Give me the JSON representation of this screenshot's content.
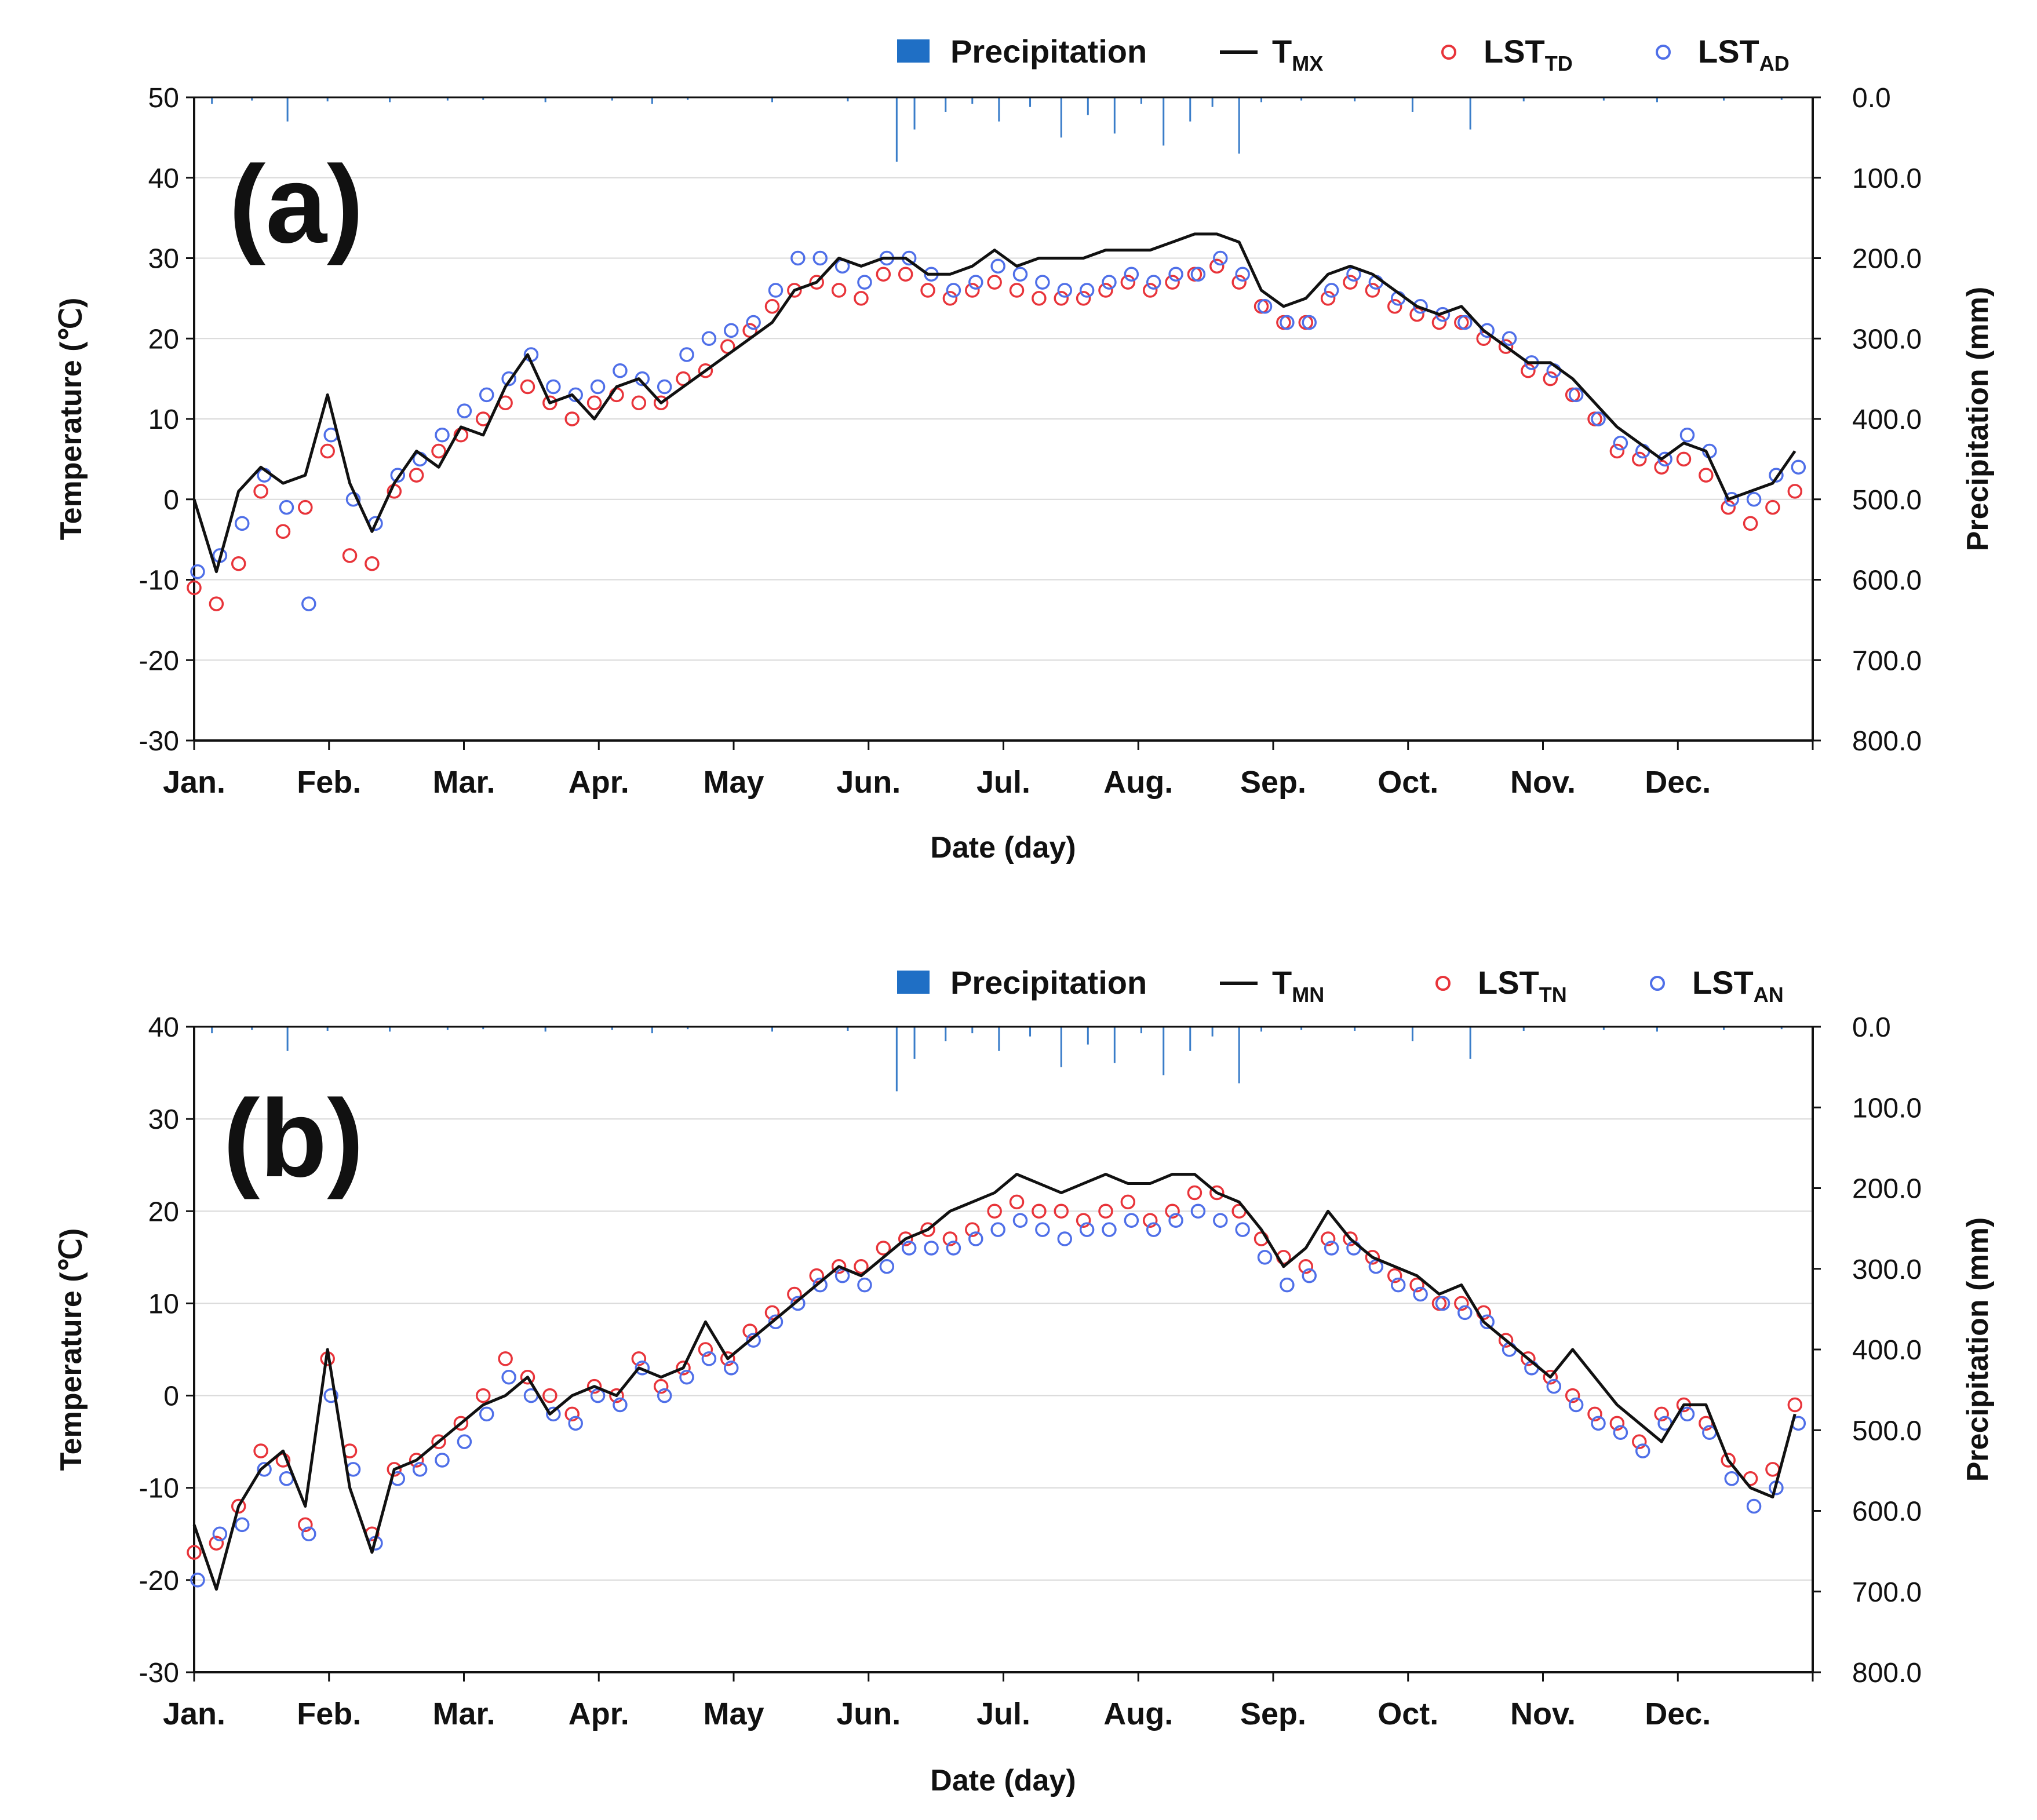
{
  "chart_data": [
    {
      "type": "line",
      "panel_label": "(a)",
      "xlabel": "Date (day)",
      "ylabel": "Temperature (℃)",
      "y2label": "Precipitation (mm)",
      "ylim": [
        -30,
        50
      ],
      "y2lim": [
        0,
        800
      ],
      "yticks": [
        "50",
        "40",
        "30",
        "20",
        "10",
        "0",
        "-10",
        "-20",
        "-30"
      ],
      "y2ticks": [
        "0.0",
        "100.0",
        "200.0",
        "300.0",
        "400.0",
        "500.0",
        "600.0",
        "700.0",
        "800.0"
      ],
      "months": [
        "Jan.",
        "Feb.",
        "Mar.",
        "Apr.",
        "May",
        "Jun.",
        "Jul.",
        "Aug.",
        "Sep.",
        "Oct.",
        "Nov.",
        "Dec."
      ],
      "legend": {
        "precip": "Precipitation",
        "line_main": "T",
        "line_sub": "MX",
        "red_main": "LST",
        "red_sub": "TD",
        "blue_main": "LST",
        "blue_sub": "AD"
      },
      "colors": {
        "line": "#111111",
        "red": "#e8343a",
        "blue": "#4f6fe8",
        "precip": "#3a7dc9"
      },
      "series_note": "Daily values sampled on a 5-day step (day-of-year)",
      "days": [
        1,
        6,
        11,
        16,
        21,
        26,
        31,
        36,
        41,
        46,
        51,
        56,
        61,
        66,
        71,
        76,
        81,
        86,
        91,
        96,
        101,
        106,
        111,
        116,
        121,
        126,
        131,
        136,
        141,
        146,
        151,
        156,
        161,
        166,
        171,
        176,
        181,
        186,
        191,
        196,
        201,
        206,
        211,
        216,
        221,
        226,
        231,
        236,
        241,
        246,
        251,
        256,
        261,
        266,
        271,
        276,
        281,
        286,
        291,
        296,
        301,
        306,
        311,
        316,
        321,
        326,
        331,
        336,
        341,
        346,
        351,
        356,
        361
      ],
      "T_MX": [
        0,
        -9,
        1,
        4,
        2,
        3,
        13,
        2,
        -4,
        2,
        6,
        4,
        9,
        8,
        14,
        18,
        12,
        13,
        10,
        14,
        15,
        12,
        14,
        16,
        18,
        20,
        22,
        26,
        27,
        30,
        29,
        30,
        30,
        28,
        28,
        29,
        31,
        29,
        30,
        30,
        30,
        31,
        31,
        31,
        32,
        33,
        33,
        32,
        26,
        24,
        25,
        28,
        29,
        28,
        26,
        24,
        23,
        24,
        21,
        19,
        17,
        17,
        15,
        12,
        9,
        7,
        5,
        7,
        6,
        0,
        1,
        2,
        6
      ],
      "LST_TD": [
        -11,
        -13,
        -8,
        1,
        -4,
        -1,
        6,
        -7,
        -8,
        1,
        3,
        6,
        8,
        10,
        12,
        14,
        12,
        10,
        12,
        13,
        12,
        12,
        15,
        16,
        19,
        21,
        24,
        26,
        27,
        26,
        25,
        28,
        28,
        26,
        25,
        26,
        27,
        26,
        25,
        25,
        25,
        26,
        27,
        26,
        27,
        28,
        29,
        27,
        24,
        22,
        22,
        25,
        27,
        26,
        24,
        23,
        22,
        22,
        20,
        19,
        16,
        15,
        13,
        10,
        6,
        5,
        4,
        5,
        3,
        -1,
        -3,
        -1,
        1
      ],
      "LST_AD": [
        -9,
        -7,
        -3,
        3,
        -1,
        -13,
        8,
        0,
        -3,
        3,
        5,
        8,
        11,
        13,
        15,
        18,
        14,
        13,
        14,
        16,
        15,
        14,
        18,
        20,
        21,
        22,
        26,
        30,
        30,
        29,
        27,
        30,
        30,
        28,
        26,
        27,
        29,
        28,
        27,
        26,
        26,
        27,
        28,
        27,
        28,
        28,
        30,
        28,
        24,
        22,
        22,
        26,
        28,
        27,
        25,
        24,
        23,
        22,
        21,
        20,
        17,
        16,
        13,
        10,
        7,
        6,
        5,
        8,
        6,
        0,
        0,
        3,
        4
      ],
      "precip_days": [
        5,
        14,
        22,
        31,
        45,
        58,
        66,
        80,
        95,
        104,
        112,
        131,
        148,
        159,
        163,
        170,
        176,
        182,
        189,
        196,
        202,
        208,
        214,
        219,
        225,
        230,
        236,
        241,
        250,
        262,
        275,
        288,
        300,
        318,
        330,
        345,
        358
      ],
      "precip_mm": [
        8,
        4,
        30,
        5,
        6,
        4,
        3,
        6,
        4,
        8,
        3,
        6,
        5,
        80,
        40,
        18,
        8,
        30,
        12,
        50,
        22,
        45,
        8,
        60,
        30,
        12,
        70,
        6,
        4,
        5,
        18,
        40,
        5,
        4,
        6,
        4,
        3
      ]
    },
    {
      "type": "line",
      "panel_label": "(b)",
      "xlabel": "Date (day)",
      "ylabel": "Temperature (℃)",
      "y2label": "Precipitation (mm)",
      "ylim": [
        -30,
        40
      ],
      "y2lim": [
        0,
        800
      ],
      "yticks": [
        "40",
        "30",
        "20",
        "10",
        "0",
        "-10",
        "-20",
        "-30"
      ],
      "y2ticks": [
        "0.0",
        "100.0",
        "200.0",
        "300.0",
        "400.0",
        "500.0",
        "600.0",
        "700.0",
        "800.0"
      ],
      "months": [
        "Jan.",
        "Feb.",
        "Mar.",
        "Apr.",
        "May",
        "Jun.",
        "Jul.",
        "Aug.",
        "Sep.",
        "Oct.",
        "Nov.",
        "Dec."
      ],
      "legend": {
        "precip": "Precipitation",
        "line_main": "T",
        "line_sub": "MN",
        "red_main": "LST",
        "red_sub": "TN",
        "blue_main": "LST",
        "blue_sub": "AN"
      },
      "colors": {
        "line": "#111111",
        "red": "#e8343a",
        "blue": "#4f6fe8",
        "precip": "#3a7dc9"
      },
      "series_note": "Daily values sampled on a 5-day step (day-of-year)",
      "days": [
        1,
        6,
        11,
        16,
        21,
        26,
        31,
        36,
        41,
        46,
        51,
        56,
        61,
        66,
        71,
        76,
        81,
        86,
        91,
        96,
        101,
        106,
        111,
        116,
        121,
        126,
        131,
        136,
        141,
        146,
        151,
        156,
        161,
        166,
        171,
        176,
        181,
        186,
        191,
        196,
        201,
        206,
        211,
        216,
        221,
        226,
        231,
        236,
        241,
        246,
        251,
        256,
        261,
        266,
        271,
        276,
        281,
        286,
        291,
        296,
        301,
        306,
        311,
        316,
        321,
        326,
        331,
        336,
        341,
        346,
        351,
        356,
        361
      ],
      "T_MN": [
        -14,
        -21,
        -12,
        -8,
        -6,
        -12,
        5,
        -10,
        -17,
        -8,
        -7,
        -5,
        -3,
        -1,
        0,
        2,
        -2,
        0,
        1,
        0,
        3,
        2,
        3,
        8,
        4,
        6,
        8,
        10,
        12,
        14,
        13,
        15,
        17,
        18,
        20,
        21,
        22,
        24,
        23,
        22,
        23,
        24,
        23,
        23,
        24,
        24,
        22,
        21,
        18,
        14,
        16,
        20,
        17,
        15,
        14,
        13,
        11,
        12,
        8,
        6,
        4,
        2,
        5,
        2,
        -1,
        -3,
        -5,
        -1,
        -1,
        -7,
        -10,
        -11,
        -2
      ],
      "LST_TN": [
        -17,
        -16,
        -12,
        -6,
        -7,
        -14,
        4,
        -6,
        -15,
        -8,
        -7,
        -5,
        -3,
        0,
        4,
        2,
        0,
        -2,
        1,
        0,
        4,
        1,
        3,
        5,
        4,
        7,
        9,
        11,
        13,
        14,
        14,
        16,
        17,
        18,
        17,
        18,
        20,
        21,
        20,
        20,
        19,
        20,
        21,
        19,
        20,
        22,
        22,
        20,
        17,
        15,
        14,
        17,
        17,
        15,
        13,
        12,
        10,
        10,
        9,
        6,
        4,
        2,
        0,
        -2,
        -3,
        -5,
        -2,
        -1,
        -3,
        -7,
        -9,
        -8,
        -1
      ],
      "LST_AN": [
        -20,
        -15,
        -14,
        -8,
        -9,
        -15,
        0,
        -8,
        -16,
        -9,
        -8,
        -7,
        -5,
        -2,
        2,
        0,
        -2,
        -3,
        0,
        -1,
        3,
        0,
        2,
        4,
        3,
        6,
        8,
        10,
        12,
        13,
        12,
        14,
        16,
        16,
        16,
        17,
        18,
        19,
        18,
        17,
        18,
        18,
        19,
        18,
        19,
        20,
        19,
        18,
        15,
        12,
        13,
        16,
        16,
        14,
        12,
        11,
        10,
        9,
        8,
        5,
        3,
        1,
        -1,
        -3,
        -4,
        -6,
        -3,
        -2,
        -4,
        -9,
        -12,
        -10,
        -3
      ],
      "precip_days": [
        5,
        14,
        22,
        31,
        45,
        58,
        66,
        80,
        95,
        104,
        112,
        131,
        148,
        159,
        163,
        170,
        176,
        182,
        189,
        196,
        202,
        208,
        214,
        219,
        225,
        230,
        236,
        241,
        250,
        262,
        275,
        288,
        300,
        318,
        330,
        345,
        358
      ],
      "precip_mm": [
        8,
        4,
        30,
        5,
        6,
        4,
        3,
        6,
        4,
        8,
        3,
        6,
        5,
        80,
        40,
        18,
        8,
        30,
        12,
        50,
        22,
        45,
        8,
        60,
        30,
        12,
        70,
        6,
        4,
        5,
        18,
        40,
        5,
        4,
        6,
        4,
        3
      ]
    }
  ]
}
